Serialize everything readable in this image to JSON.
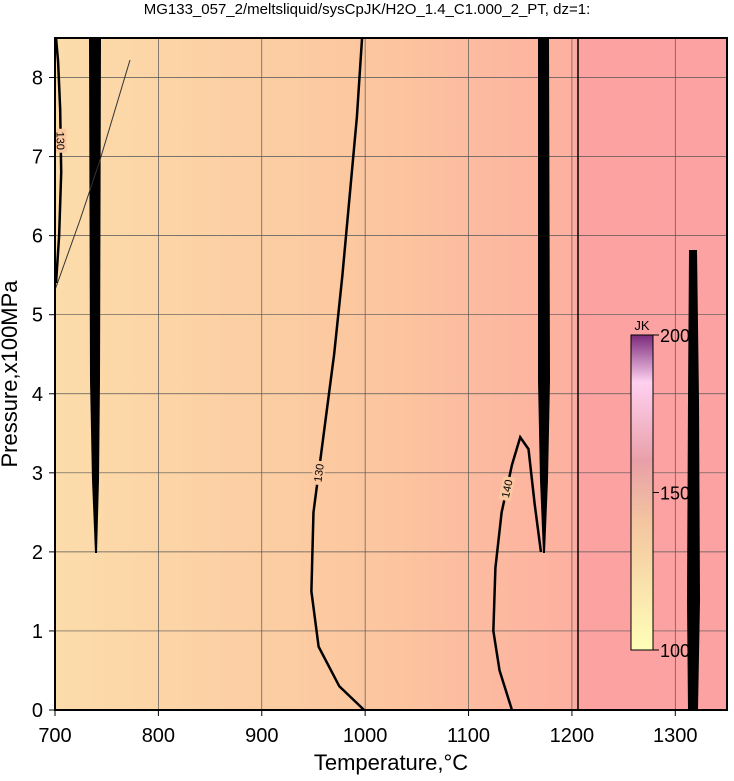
{
  "chart_data": {
    "type": "contour",
    "title": "MG133_057_2/meltsliquid/sysCpJK/H2O_1.4_C1.000_2_PT, dz=1:",
    "x_label": "Temperature,°C",
    "y_label": "Pressure,x100MPa",
    "xlim": [
      700,
      1350
    ],
    "ylim": [
      0,
      8.5
    ],
    "xticks": [
      700,
      800,
      900,
      1000,
      1100,
      1200,
      1300
    ],
    "yticks": [
      0,
      1,
      2,
      3,
      4,
      5,
      6,
      7,
      8
    ],
    "grid": true,
    "contours": [
      {
        "label": 130,
        "x": [
          999,
          975,
          955,
          948,
          950,
          960,
          970,
          978,
          985,
          992,
          997
        ],
        "y": [
          0,
          0.3,
          0.8,
          1.5,
          2.5,
          3.5,
          4.5,
          5.5,
          6.5,
          7.5,
          8.5
        ]
      },
      {
        "label": 140,
        "x": [
          1142,
          1130,
          1124,
          1126,
          1132,
          1142,
          1150,
          1158,
          1164,
          1170
        ],
        "y": [
          0,
          0.5,
          1.0,
          1.8,
          2.5,
          3.1,
          3.45,
          3.3,
          2.6,
          2.0
        ]
      },
      {
        "label": 130,
        "x": [
          701,
          704,
          706,
          705,
          703,
          701
        ],
        "y": [
          5.4,
          6.0,
          6.8,
          7.6,
          8.2,
          8.5
        ]
      }
    ],
    "colorbar": {
      "label": "JK",
      "lim": [
        100,
        200
      ],
      "ticks": [
        100,
        150,
        200
      ]
    }
  }
}
